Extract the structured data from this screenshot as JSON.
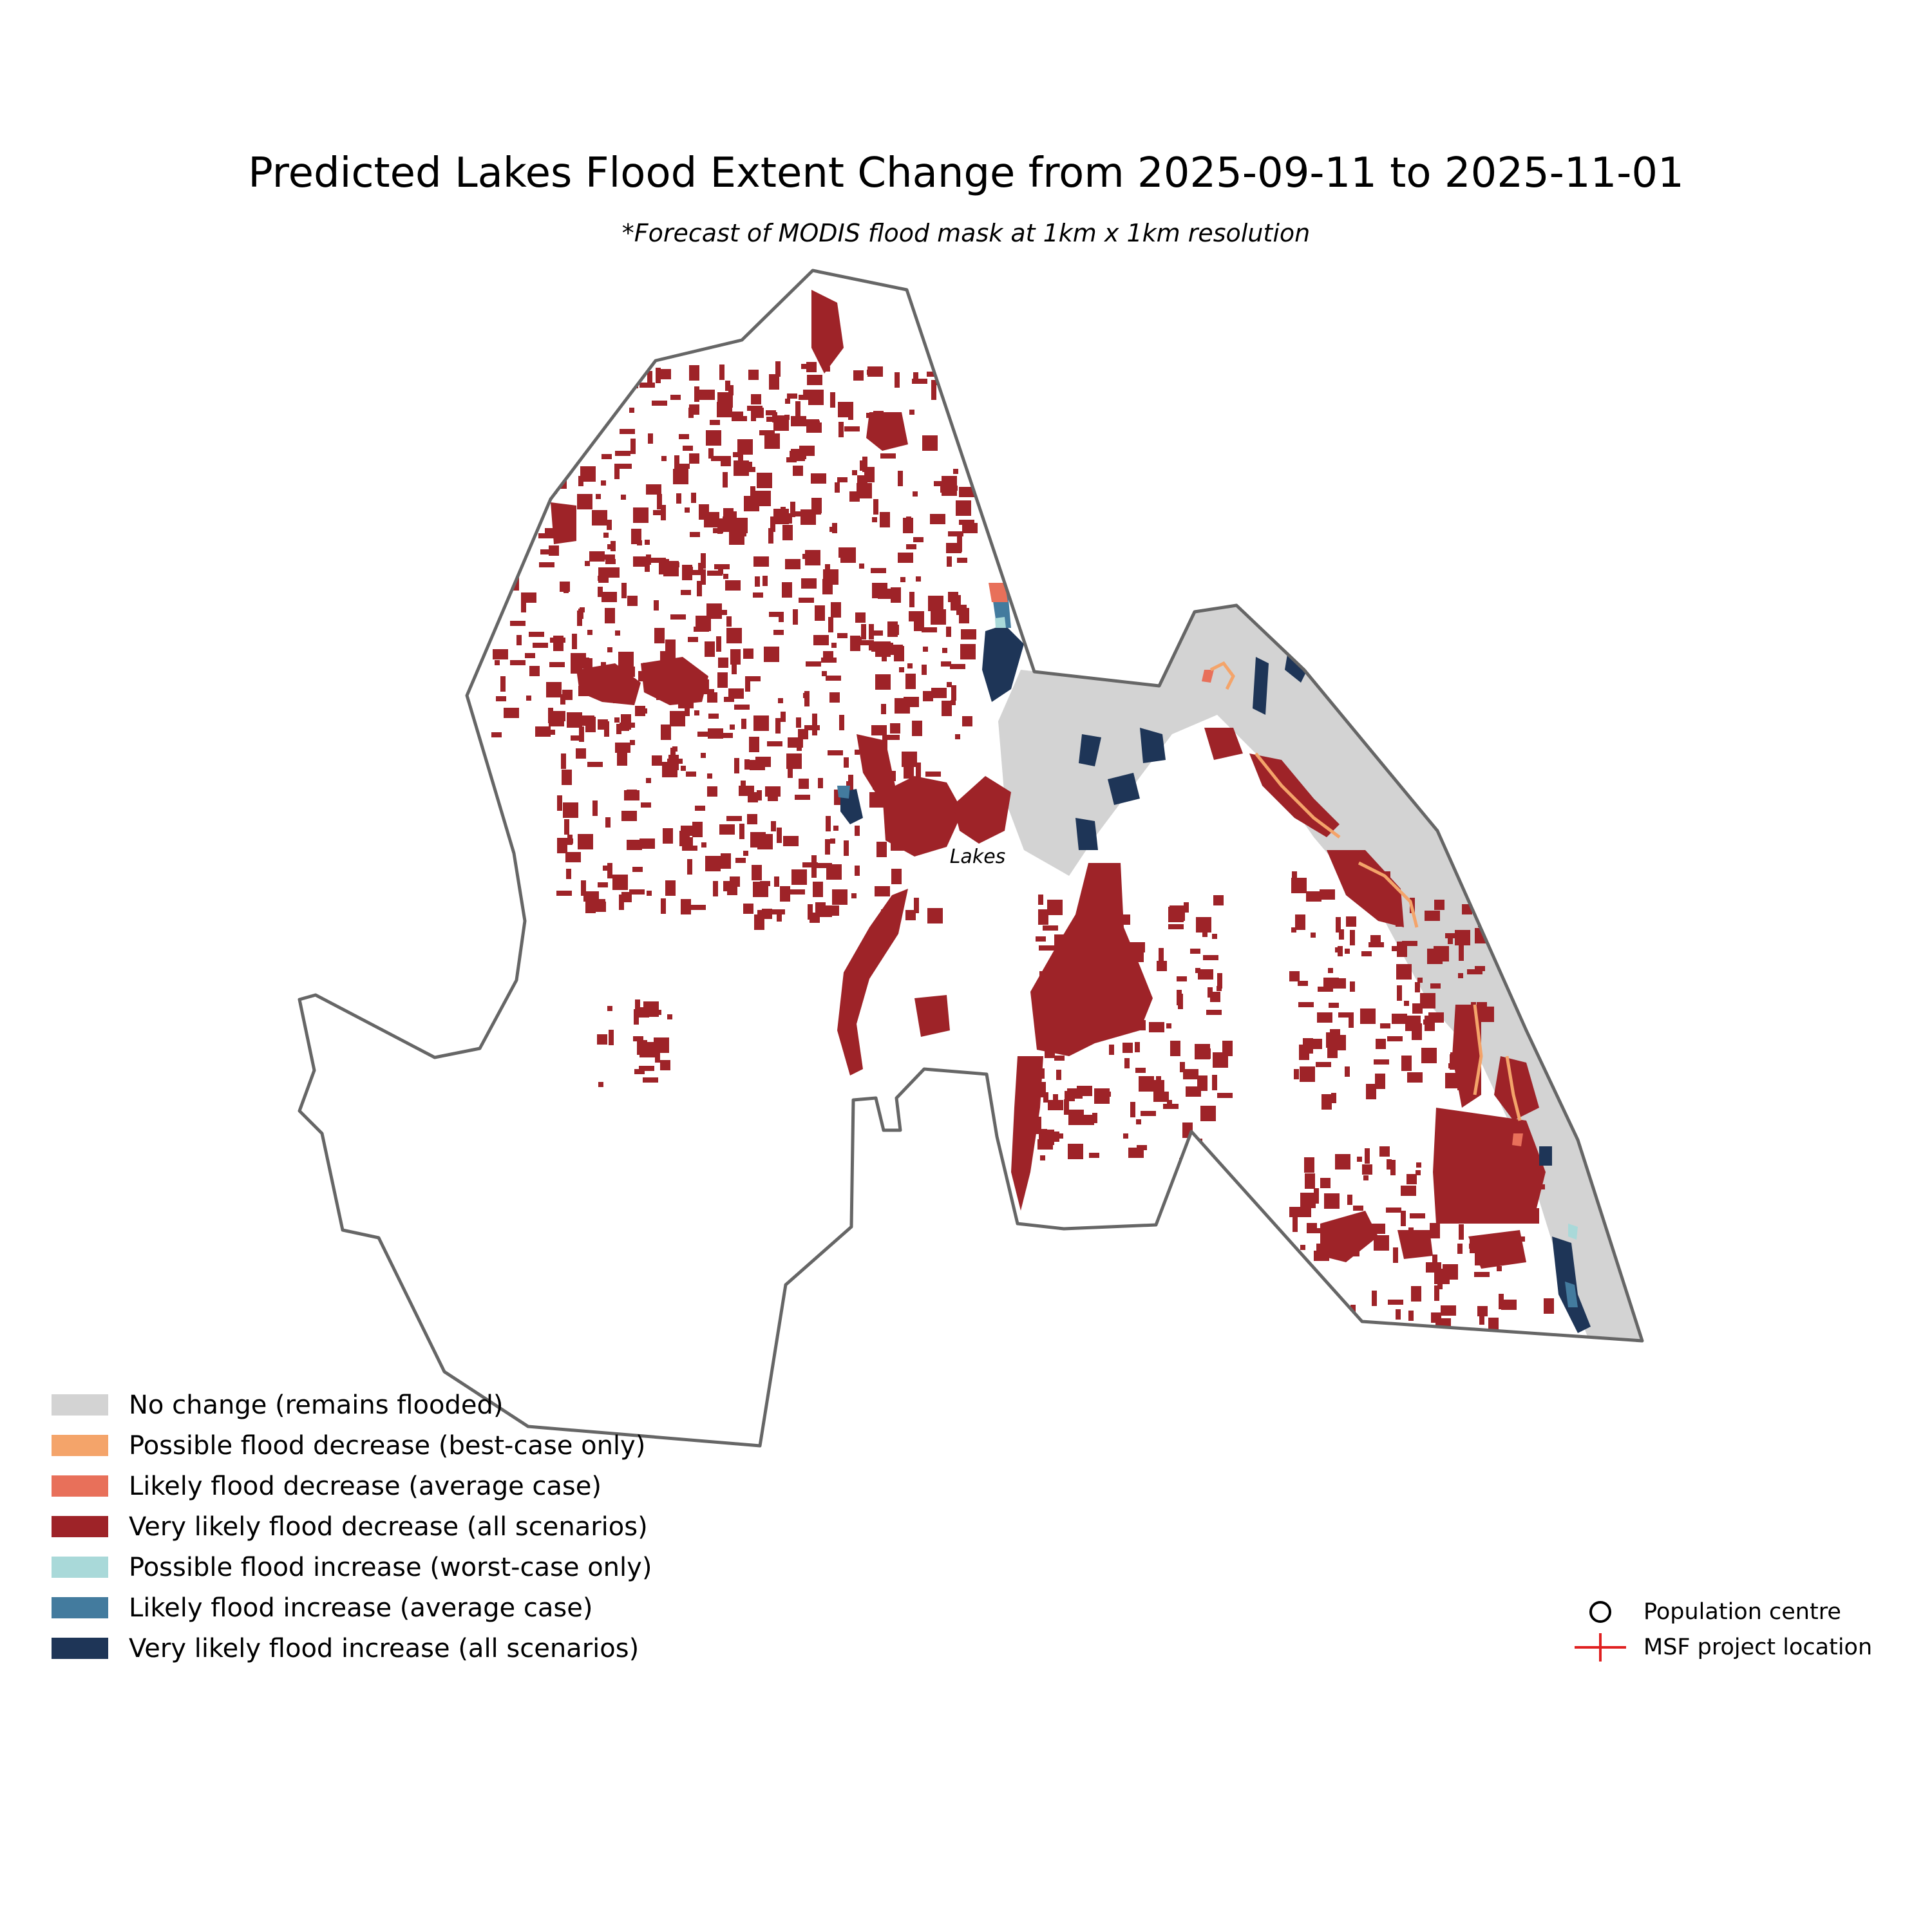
{
  "title": "Predicted Lakes Flood Extent Change from 2025-09-11 to 2025-11-01",
  "subtitle": "*Forecast of MODIS flood mask at 1km x 1km resolution",
  "region_label": "Lakes",
  "colors": {
    "no_change": "#d3d3d3",
    "possible_decrease": "#f4a46a",
    "likely_decrease": "#e8705a",
    "very_likely_decrease": "#9e2328",
    "possible_increase": "#a9d9d9",
    "likely_increase": "#437b9e",
    "very_likely_increase": "#1e3557",
    "boundary": "#666666",
    "msf_marker": "#e02020"
  },
  "legend": [
    {
      "label": "No change (remains flooded)",
      "color": "#d3d3d3"
    },
    {
      "label": "Possible flood decrease (best-case only)",
      "color": "#f4a46a"
    },
    {
      "label": "Likely flood decrease (average case)",
      "color": "#e8705a"
    },
    {
      "label": "Very likely flood decrease (all scenarios)",
      "color": "#9e2328"
    },
    {
      "label": "Possible flood increase (worst-case only)",
      "color": "#a9d9d9"
    },
    {
      "label": "Likely flood increase (average case)",
      "color": "#437b9e"
    },
    {
      "label": "Very likely flood increase (all scenarios)",
      "color": "#1e3557"
    }
  ],
  "marker_legend": [
    {
      "label": "Population centre",
      "icon": "circle-icon"
    },
    {
      "label": "MSF project location",
      "icon": "plus-icon"
    }
  ]
}
